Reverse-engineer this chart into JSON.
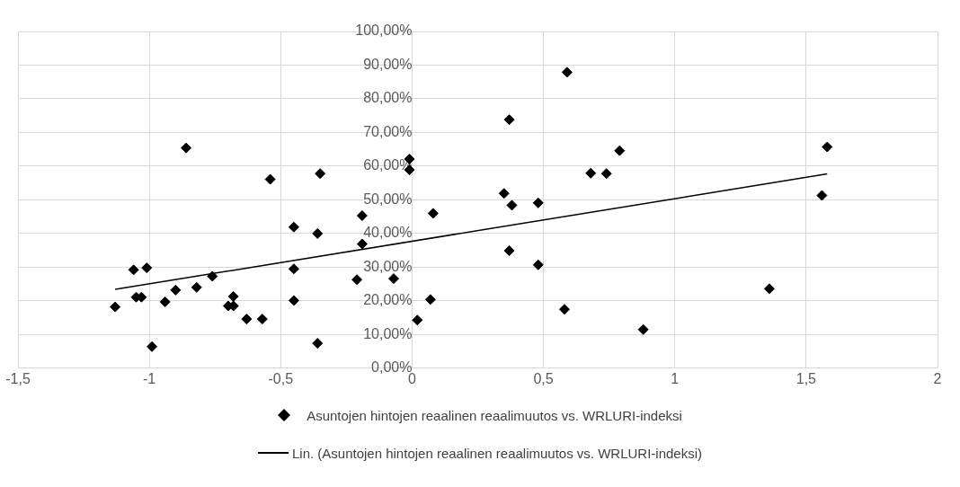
{
  "chart_data": {
    "type": "scatter",
    "grid": true,
    "legend": "bottom",
    "xlim": [
      -1.5,
      2
    ],
    "xticks": [
      {
        "value": -1.5,
        "label": "-1,5"
      },
      -1,
      {
        "value": -0.5,
        "label": "-0,5"
      },
      0,
      {
        "value": 0.5,
        "label": "0,5"
      },
      1,
      {
        "value": 1.5,
        "label": "1,5"
      },
      2
    ],
    "ylim": [
      0,
      100
    ],
    "yticks": [
      {
        "value": 0,
        "label": "0,00%"
      },
      {
        "value": 10,
        "label": "10,00%"
      },
      {
        "value": 20,
        "label": "20,00%"
      },
      {
        "value": 30,
        "label": "30,00%"
      },
      {
        "value": 40,
        "label": "40,00%"
      },
      {
        "value": 50,
        "label": "50,00%"
      },
      {
        "value": 60,
        "label": "60,00%"
      },
      {
        "value": 70,
        "label": "70,00%"
      },
      {
        "value": 80,
        "label": "80,00%"
      },
      {
        "value": 90,
        "label": "90,00%"
      },
      {
        "value": 100,
        "label": "100,00%"
      }
    ],
    "series": [
      {
        "name": "Asuntojen hintojen reaalinen reaalimuutos vs. WRLURI-indeksi",
        "marker": "diamond",
        "color": "#000000",
        "x": [
          -1.13,
          -1.06,
          -1.01,
          -1.05,
          -1.03,
          -0.99,
          -0.94,
          -0.9,
          -0.86,
          -0.82,
          -0.76,
          -0.7,
          -0.68,
          -0.68,
          -0.63,
          -0.57,
          -0.54,
          -0.45,
          -0.45,
          -0.45,
          -0.36,
          -0.36,
          -0.35,
          -0.19,
          -0.19,
          -0.21,
          -0.07,
          -0.01,
          -0.01,
          0.02,
          0.07,
          0.08,
          0.35,
          0.37,
          0.38,
          0.37,
          0.48,
          0.48,
          0.59,
          0.58,
          0.68,
          0.74,
          0.79,
          0.88,
          1.36,
          1.56,
          1.58
        ],
        "values": [
          18.2,
          29.2,
          29.8,
          21.1,
          21.1,
          6.4,
          19.7,
          23.2,
          65.4,
          24.0,
          27.3,
          18.5,
          21.3,
          18.5,
          14.6,
          14.6,
          56.1,
          41.9,
          29.5,
          20.1,
          40.0,
          7.4,
          57.8,
          45.3,
          36.9,
          26.3,
          26.6,
          62.1,
          58.9,
          14.3,
          20.4,
          46.0,
          51.9,
          73.8,
          48.4,
          34.9,
          49.1,
          30.7,
          87.9,
          17.5,
          57.9,
          57.8,
          64.6,
          11.5,
          23.6,
          51.3,
          65.7
        ]
      },
      {
        "name": "Lin. (Asuntojen hintojen reaalinen reaalimuutos vs. WRLURI-indeksi)",
        "type": "line",
        "marker": "none",
        "line_style": "solid",
        "color": "#000000",
        "x": [
          -1.13,
          1.58
        ],
        "values": [
          23.4,
          57.7
        ]
      }
    ]
  }
}
